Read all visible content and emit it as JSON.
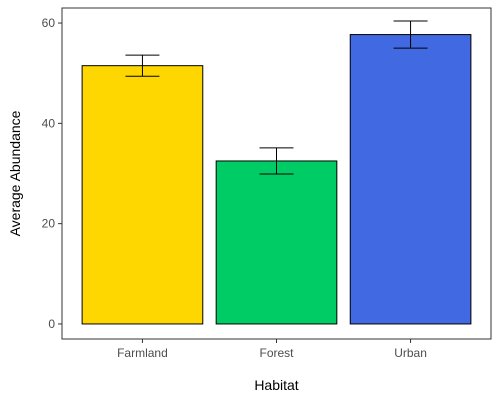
{
  "chart_data": {
    "type": "bar",
    "title": "",
    "xlabel": "Habitat",
    "ylabel": "Average Abundance",
    "categories": [
      "Farmland",
      "Forest",
      "Urban"
    ],
    "values": [
      51.5,
      32.5,
      57.7
    ],
    "error_low": [
      49.4,
      29.9,
      55.0
    ],
    "error_high": [
      53.6,
      35.1,
      60.4
    ],
    "colors": [
      "#FFD700",
      "#00CC66",
      "#4169E1"
    ],
    "ylim": [
      -3,
      63
    ],
    "yticks": [
      0,
      20,
      40,
      60
    ],
    "grid": false,
    "legend": "none"
  }
}
